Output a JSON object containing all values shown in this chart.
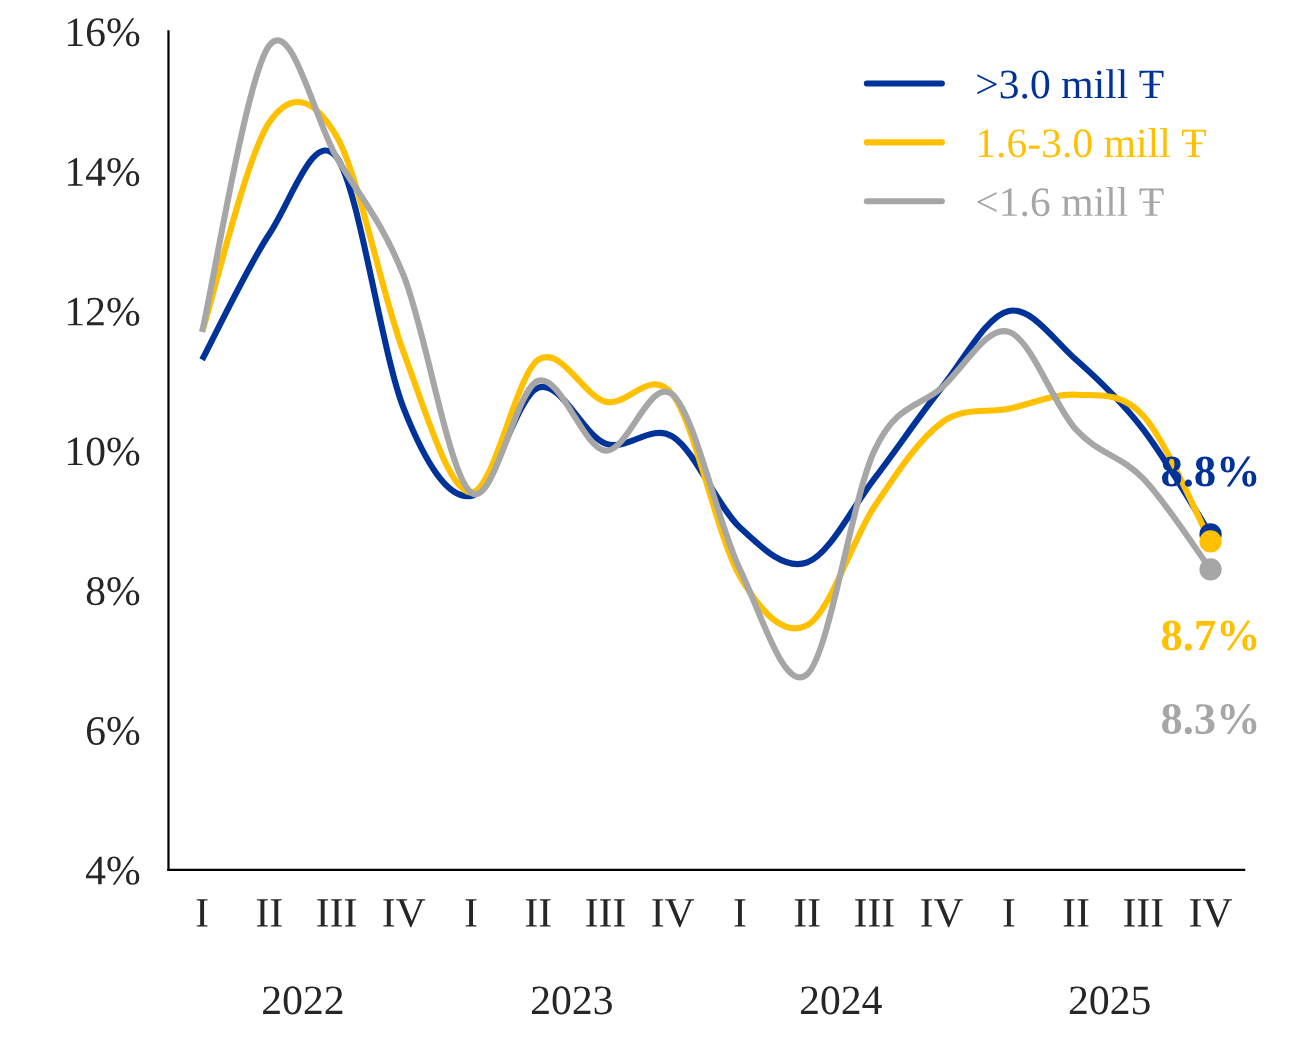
{
  "chart_data": {
    "type": "line",
    "categories": [
      "I",
      "II",
      "III",
      "IV",
      "I",
      "II",
      "III",
      "IV",
      "I",
      "II",
      "III",
      "IV",
      "I",
      "II",
      "III",
      "IV"
    ],
    "annotations": [
      "2022",
      "2023",
      "2024",
      "2025"
    ],
    "ylim": [
      4,
      16
    ],
    "yticks": [
      {
        "value": 4,
        "label": "4%"
      },
      {
        "value": 6,
        "label": "6%"
      },
      {
        "value": 8,
        "label": "8%"
      },
      {
        "value": 10,
        "label": "10%"
      },
      {
        "value": 12,
        "label": "12%"
      },
      {
        "value": 14,
        "label": "14%"
      },
      {
        "value": 16,
        "label": "16%"
      }
    ],
    "grid": false,
    "legend": "top right",
    "series": [
      {
        "name": ">3.0 mill Ŧ",
        "color": "#003399",
        "values": [
          11.3,
          13.1,
          14.2,
          10.6,
          9.35,
          10.9,
          10.1,
          10.2,
          8.9,
          8.4,
          9.6,
          10.9,
          12.0,
          11.3,
          10.3,
          8.8
        ],
        "value_labels": [
          null,
          null,
          null,
          null,
          null,
          null,
          null,
          null,
          null,
          null,
          null,
          null,
          null,
          null,
          null,
          "8.8%"
        ]
      },
      {
        "name": "1.6-3.0 mill Ŧ",
        "color": "#ffc000",
        "values": [
          11.7,
          14.7,
          14.5,
          11.4,
          9.4,
          11.3,
          10.7,
          10.8,
          8.2,
          7.5,
          9.2,
          10.4,
          10.6,
          10.8,
          10.5,
          8.7
        ],
        "value_labels": [
          null,
          null,
          null,
          null,
          null,
          null,
          null,
          null,
          null,
          null,
          null,
          null,
          null,
          null,
          null,
          "8.7%"
        ]
      },
      {
        "name": "<1.6 mill Ŧ",
        "color": "#a6a6a6",
        "values": [
          11.7,
          15.8,
          14.2,
          12.5,
          9.4,
          11.0,
          10.0,
          10.8,
          8.3,
          6.8,
          10.0,
          10.9,
          11.7,
          10.3,
          9.6,
          8.3
        ],
        "value_labels": [
          null,
          null,
          null,
          null,
          null,
          null,
          null,
          null,
          null,
          null,
          null,
          null,
          null,
          null,
          null,
          "8.3%"
        ]
      }
    ]
  }
}
